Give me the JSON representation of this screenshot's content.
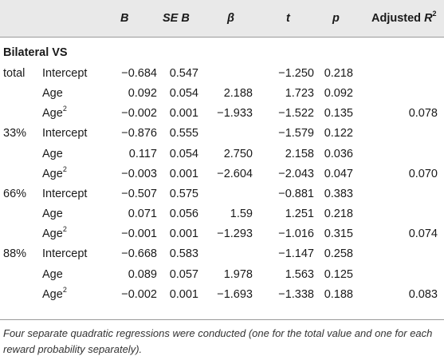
{
  "header": {
    "b": "B",
    "se_b": "SE B",
    "beta": "β",
    "t": "t",
    "p": "p",
    "adj_r2_prefix": "Adjusted ",
    "adj_r2_var": "R",
    "adj_r2_sup": "2"
  },
  "section_title": "Bilateral VS",
  "rows": [
    {
      "group": "total",
      "term": "Intercept",
      "term_sup": "",
      "b": "−0.684",
      "se_b": "0.547",
      "beta": "",
      "t": "−1.250",
      "p": "0.218",
      "adj_r2": ""
    },
    {
      "group": "",
      "term": "Age",
      "term_sup": "",
      "b": "0.092",
      "se_b": "0.054",
      "beta": "2.188",
      "t": "1.723",
      "p": "0.092",
      "adj_r2": ""
    },
    {
      "group": "",
      "term": "Age",
      "term_sup": "2",
      "b": "−0.002",
      "se_b": "0.001",
      "beta": "−1.933",
      "t": "−1.522",
      "p": "0.135",
      "adj_r2": "0.078"
    },
    {
      "group": "33%",
      "term": "Intercept",
      "term_sup": "",
      "b": "−0.876",
      "se_b": "0.555",
      "beta": "",
      "t": "−1.579",
      "p": "0.122",
      "adj_r2": ""
    },
    {
      "group": "",
      "term": "Age",
      "term_sup": "",
      "b": "0.117",
      "se_b": "0.054",
      "beta": "2.750",
      "t": "2.158",
      "p": "0.036",
      "adj_r2": ""
    },
    {
      "group": "",
      "term": "Age",
      "term_sup": "2",
      "b": "−0.003",
      "se_b": "0.001",
      "beta": "−2.604",
      "t": "−2.043",
      "p": "0.047",
      "adj_r2": "0.070"
    },
    {
      "group": "66%",
      "term": "Intercept",
      "term_sup": "",
      "b": "−0.507",
      "se_b": "0.575",
      "beta": "",
      "t": "−0.881",
      "p": "0.383",
      "adj_r2": ""
    },
    {
      "group": "",
      "term": "Age",
      "term_sup": "",
      "b": "0.071",
      "se_b": "0.056",
      "beta": "1.59",
      "t": "1.251",
      "p": "0.218",
      "adj_r2": ""
    },
    {
      "group": "",
      "term": "Age",
      "term_sup": "2",
      "b": "−0.001",
      "se_b": "0.001",
      "beta": "−1.293",
      "t": "−1.016",
      "p": "0.315",
      "adj_r2": "0.074"
    },
    {
      "group": "88%",
      "term": "Intercept",
      "term_sup": "",
      "b": "−0.668",
      "se_b": "0.583",
      "beta": "",
      "t": "−1.147",
      "p": "0.258",
      "adj_r2": ""
    },
    {
      "group": "",
      "term": "Age",
      "term_sup": "",
      "b": "0.089",
      "se_b": "0.057",
      "beta": "1.978",
      "t": "1.563",
      "p": "0.125",
      "adj_r2": ""
    },
    {
      "group": "",
      "term": "Age",
      "term_sup": "2",
      "b": "−0.002",
      "se_b": "0.001",
      "beta": "−1.693",
      "t": "−1.338",
      "p": "0.188",
      "adj_r2": "0.083"
    }
  ],
  "footnote": "Four separate quadratic regressions were conducted (one for the total value and one for each reward probability separately)."
}
